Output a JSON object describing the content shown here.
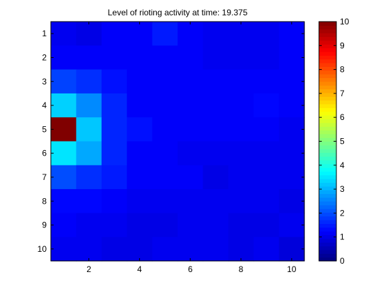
{
  "chart_data": {
    "type": "heatmap",
    "title": "Level of rioting activity at time: 19.375",
    "xlabel": "",
    "ylabel": "",
    "x_ticks": [
      2,
      4,
      6,
      8,
      10
    ],
    "y_ticks": [
      1,
      2,
      3,
      4,
      5,
      6,
      7,
      8,
      9,
      10
    ],
    "xlim": [
      0.5,
      10.5
    ],
    "ylim": [
      0.5,
      10.5
    ],
    "y_direction": "reverse",
    "colormap": "jet",
    "color_range": [
      0,
      10
    ],
    "colorbar_ticks": [
      0,
      1,
      2,
      3,
      4,
      5,
      6,
      7,
      8,
      9,
      10
    ],
    "colorbar_position": "right",
    "grid": false,
    "rows": 10,
    "cols": 10,
    "values": [
      [
        1.1,
        1.0,
        1.2,
        1.2,
        1.5,
        1.2,
        1.1,
        1.1,
        1.1,
        1.2
      ],
      [
        1.2,
        1.2,
        1.2,
        1.2,
        1.2,
        1.2,
        1.1,
        1.1,
        1.1,
        1.2
      ],
      [
        1.9,
        1.7,
        1.4,
        1.2,
        1.2,
        1.2,
        1.2,
        1.2,
        1.2,
        1.2
      ],
      [
        3.3,
        2.6,
        1.6,
        1.2,
        1.2,
        1.2,
        1.2,
        1.2,
        1.3,
        1.2
      ],
      [
        10.0,
        3.2,
        1.6,
        1.4,
        1.2,
        1.2,
        1.2,
        1.2,
        1.2,
        1.1
      ],
      [
        3.5,
        2.9,
        1.6,
        1.2,
        1.2,
        1.1,
        1.1,
        1.1,
        1.1,
        1.1
      ],
      [
        2.0,
        1.7,
        1.5,
        1.2,
        1.2,
        1.2,
        1.0,
        1.1,
        1.1,
        1.1
      ],
      [
        1.3,
        1.3,
        1.2,
        1.1,
        1.1,
        1.1,
        1.1,
        1.1,
        1.1,
        1.0
      ],
      [
        1.2,
        1.1,
        1.1,
        1.0,
        1.0,
        1.1,
        1.1,
        1.0,
        1.0,
        1.1
      ],
      [
        1.1,
        1.1,
        1.0,
        1.0,
        1.1,
        1.1,
        1.1,
        1.0,
        1.1,
        0.9
      ]
    ]
  }
}
